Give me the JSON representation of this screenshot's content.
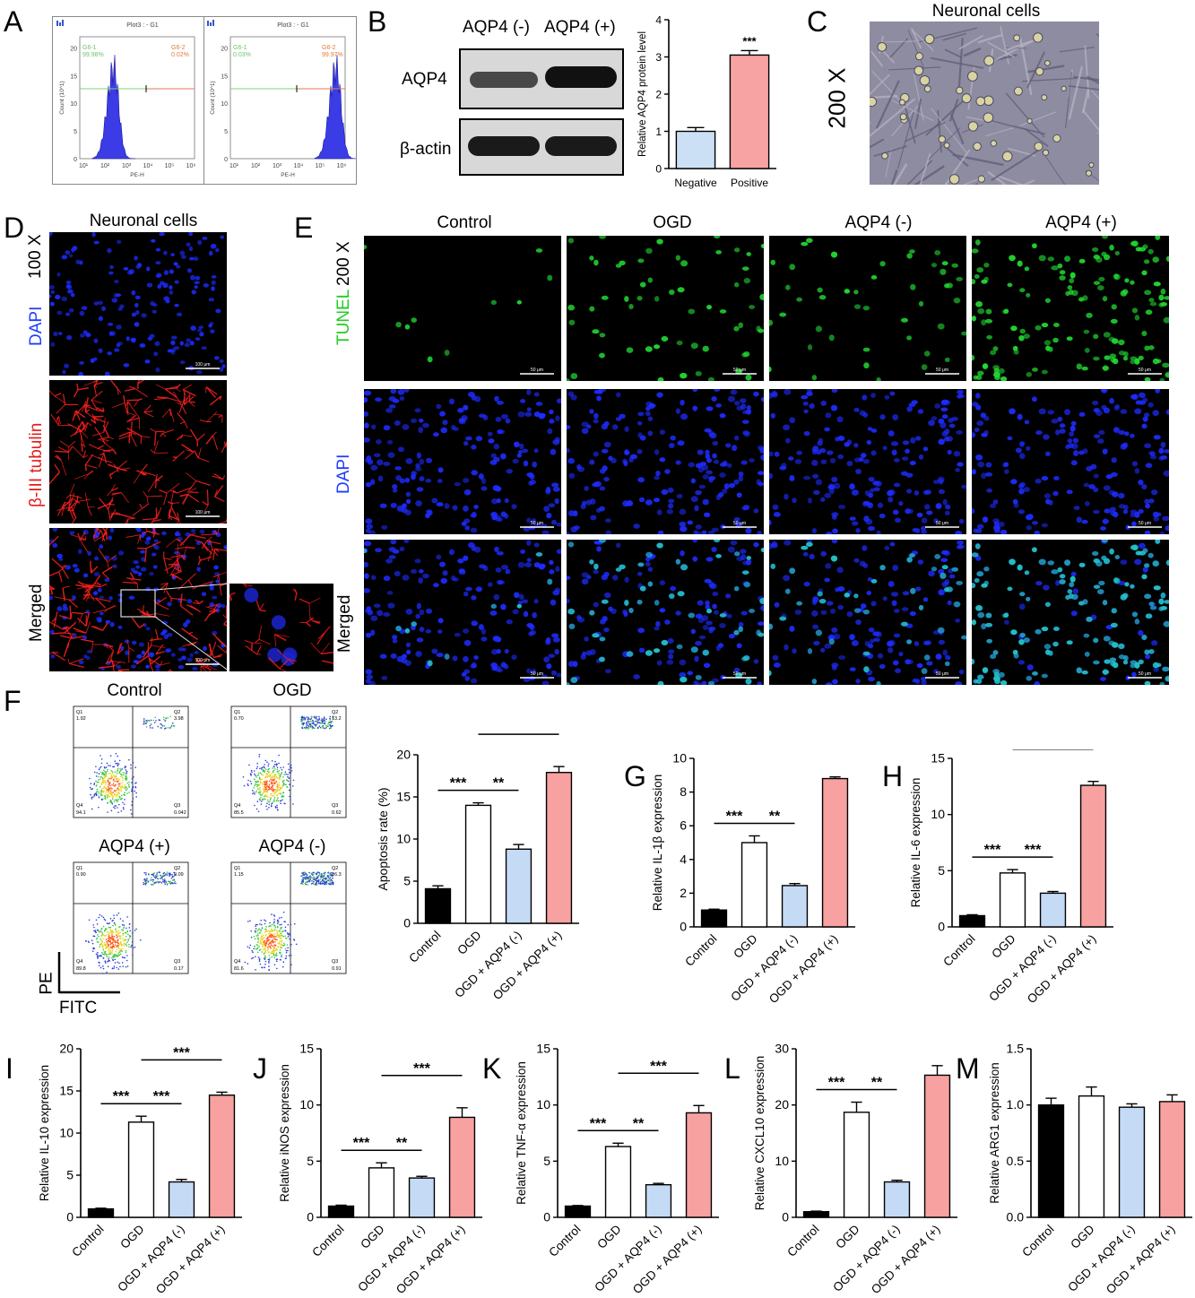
{
  "panels": {
    "A": "A",
    "B": "B",
    "C": "C",
    "D": "D",
    "E": "E",
    "F": "F",
    "G": "G",
    "H": "H",
    "I": "I",
    "J": "J",
    "K": "K",
    "L": "L",
    "M": "M"
  },
  "panelA": {
    "plots": [
      {
        "title": "Plot3 : - G1",
        "g1": "G6-1",
        "g1v": "99.98%",
        "g2": "G6-2",
        "g2v": "0.02%",
        "peak": "left"
      },
      {
        "title": "Plot3 : - G1",
        "g1": "G6-1",
        "g1v": "0.03%",
        "g2": "G6-2",
        "g2v": "99.97%",
        "peak": "right"
      }
    ],
    "ylabel": "Count (10^1)",
    "xlabel": "PE-H",
    "yticks": [
      "0",
      "5",
      "10",
      "15",
      "20"
    ],
    "xticks": [
      "10¹",
      "10²",
      "10³",
      "10⁴",
      "10⁵",
      "10⁶"
    ]
  },
  "panelB": {
    "lane1": "AQP4 (-)",
    "lane2": "AQP4 (+)",
    "row1": "AQP4",
    "row2": "β-actin",
    "chart_data": {
      "type": "bar",
      "categories": [
        "Negative",
        "Positive"
      ],
      "values": [
        1.0,
        3.05
      ],
      "errors": [
        0.1,
        0.12
      ],
      "ylabel": "Relative AQP4 protein level",
      "ylim": [
        0,
        4
      ],
      "yticks": [
        0,
        1,
        2,
        3,
        4
      ],
      "sig": "***",
      "colors": [
        "#cce0f5",
        "#f7a3a3"
      ]
    }
  },
  "panelC": {
    "title": "Neuronal cells",
    "mag": "200 X"
  },
  "panelD": {
    "title": "Neuronal cells",
    "mag": "100 X",
    "rows": [
      "DAPI",
      "β-III tubulin",
      "Merged"
    ],
    "scalebar": "100 μm"
  },
  "panelE": {
    "mag": "200 X",
    "cols": [
      "Control",
      "OGD",
      "AQP4 (-)",
      "AQP4 (+)"
    ],
    "rows": [
      "TUNEL",
      "DAPI",
      "Merged"
    ],
    "scalebar": "50 μm"
  },
  "panelF": {
    "plots": [
      {
        "title": "Control",
        "q1": "1.92",
        "q2": "3.98",
        "q3": "0.042",
        "q4": "94.1"
      },
      {
        "title": "OGD",
        "q1": "0.70",
        "q2": "13.2",
        "q3": "0.62",
        "q4": "85.5"
      },
      {
        "title": "AQP4 (+)",
        "q1": "0.90",
        "q2": "9.09",
        "q3": "0.17",
        "q4": "89.8"
      },
      {
        "title": "AQP4 (-)",
        "q1": "1.15",
        "q2": "16.3",
        "q3": "0.91",
        "q4": "81.6"
      }
    ],
    "qlabels": [
      "Q1",
      "Q2",
      "Q3",
      "Q4"
    ],
    "xaxis": "FITC",
    "yaxis": "PE",
    "chart_data": {
      "type": "bar",
      "categories": [
        "Control",
        "OGD",
        "OGD + AQP4 (-)",
        "OGD + AQP4 (+)"
      ],
      "values": [
        4.1,
        14.0,
        8.8,
        17.9
      ],
      "errors": [
        0.35,
        0.3,
        0.55,
        0.7
      ],
      "ylabel": "Apoptosis rate (%)",
      "ylim": [
        0,
        20
      ],
      "yticks": [
        0,
        5,
        10,
        15,
        20
      ],
      "sig": [
        {
          "from": 0,
          "to": 1,
          "label": "***"
        },
        {
          "from": 1,
          "to": 2,
          "label": "**"
        },
        {
          "from": 1,
          "to": 3,
          "label": "***"
        }
      ]
    }
  },
  "bar_colors": [
    "#000000",
    "#ffffff",
    "#c5daf5",
    "#f7a1a1"
  ],
  "charts": {
    "G": {
      "type": "bar",
      "categories": [
        "Control",
        "OGD",
        "OGD + AQP4 (-)",
        "OGD + AQP4 (+)"
      ],
      "values": [
        1.0,
        5.0,
        2.45,
        8.8
      ],
      "errors": [
        0.05,
        0.4,
        0.12,
        0.1
      ],
      "ylabel": "Relative IL-1β expression",
      "ylim": [
        0,
        10
      ],
      "yticks": [
        0,
        2,
        4,
        6,
        8,
        10
      ],
      "sig": [
        {
          "from": 0,
          "to": 1,
          "label": "***"
        },
        {
          "from": 1,
          "to": 2,
          "label": "**"
        },
        {
          "from": 1,
          "to": 3,
          "label": "***"
        }
      ]
    },
    "H": {
      "type": "bar",
      "categories": [
        "Control",
        "OGD",
        "OGD + AQP4 (-)",
        "OGD + AQP4 (+)"
      ],
      "values": [
        1.0,
        4.8,
        3.0,
        12.6
      ],
      "errors": [
        0.08,
        0.3,
        0.15,
        0.35
      ],
      "ylabel": "Relative IL-6 expression",
      "ylim": [
        0,
        15
      ],
      "yticks": [
        0,
        5,
        10,
        15
      ],
      "sig": [
        {
          "from": 0,
          "to": 1,
          "label": "***"
        },
        {
          "from": 1,
          "to": 2,
          "label": "***"
        },
        {
          "from": 1,
          "to": 3,
          "label": "***"
        }
      ]
    },
    "I": {
      "type": "bar",
      "categories": [
        "Control",
        "OGD",
        "OGD + AQP4 (-)",
        "OGD + AQP4 (+)"
      ],
      "values": [
        1.0,
        11.3,
        4.2,
        14.5
      ],
      "errors": [
        0.08,
        0.7,
        0.3,
        0.35
      ],
      "ylabel": "Relative IL-10 expression",
      "ylim": [
        0,
        20
      ],
      "yticks": [
        0,
        5,
        10,
        15,
        20
      ],
      "sig": [
        {
          "from": 0,
          "to": 1,
          "label": "***"
        },
        {
          "from": 1,
          "to": 2,
          "label": "***"
        },
        {
          "from": 1,
          "to": 3,
          "label": "***"
        }
      ]
    },
    "J": {
      "type": "bar",
      "categories": [
        "Control",
        "OGD",
        "OGD + AQP4 (-)",
        "OGD + AQP4 (+)"
      ],
      "values": [
        1.0,
        4.4,
        3.5,
        8.9
      ],
      "errors": [
        0.08,
        0.45,
        0.15,
        0.85
      ],
      "ylabel": "Relative iNOS expression",
      "ylim": [
        0,
        15
      ],
      "yticks": [
        0,
        5,
        10,
        15
      ],
      "sig": [
        {
          "from": 0,
          "to": 1,
          "label": "***"
        },
        {
          "from": 1,
          "to": 2,
          "label": "**"
        },
        {
          "from": 1,
          "to": 3,
          "label": "***"
        }
      ]
    },
    "K": {
      "type": "bar",
      "categories": [
        "Control",
        "OGD",
        "OGD + AQP4 (-)",
        "OGD + AQP4 (+)"
      ],
      "values": [
        1.0,
        6.3,
        2.9,
        9.3
      ],
      "errors": [
        0.05,
        0.3,
        0.12,
        0.65
      ],
      "ylabel": "Relative TNF-α expression",
      "ylim": [
        0,
        15
      ],
      "yticks": [
        0,
        5,
        10,
        15
      ],
      "sig": [
        {
          "from": 0,
          "to": 1,
          "label": "***"
        },
        {
          "from": 1,
          "to": 2,
          "label": "**"
        },
        {
          "from": 1,
          "to": 3,
          "label": "***"
        }
      ]
    },
    "L": {
      "type": "bar",
      "categories": [
        "Control",
        "OGD",
        "OGD + AQP4 (-)",
        "OGD + AQP4 (+)"
      ],
      "values": [
        1.0,
        18.7,
        6.3,
        25.3
      ],
      "errors": [
        0.1,
        1.8,
        0.3,
        1.7
      ],
      "ylabel": "Relative CXCL10 expression",
      "ylim": [
        0,
        30
      ],
      "yticks": [
        0,
        10,
        20,
        30
      ],
      "sig": [
        {
          "from": 0,
          "to": 1,
          "label": "***"
        },
        {
          "from": 1,
          "to": 2,
          "label": "**"
        },
        {
          "from": 1,
          "to": 3,
          "label": "***"
        }
      ]
    },
    "M": {
      "type": "bar",
      "categories": [
        "Control",
        "OGD",
        "OGD + AQP4 (-)",
        "OGD + AQP4 (+)"
      ],
      "values": [
        1.0,
        1.08,
        0.98,
        1.03
      ],
      "errors": [
        0.06,
        0.08,
        0.03,
        0.06
      ],
      "ylabel": "Relative ARG1 expression",
      "ylim": [
        0,
        1.5
      ],
      "yticks": [
        0.0,
        0.5,
        1.0,
        1.5
      ],
      "sig": []
    }
  }
}
